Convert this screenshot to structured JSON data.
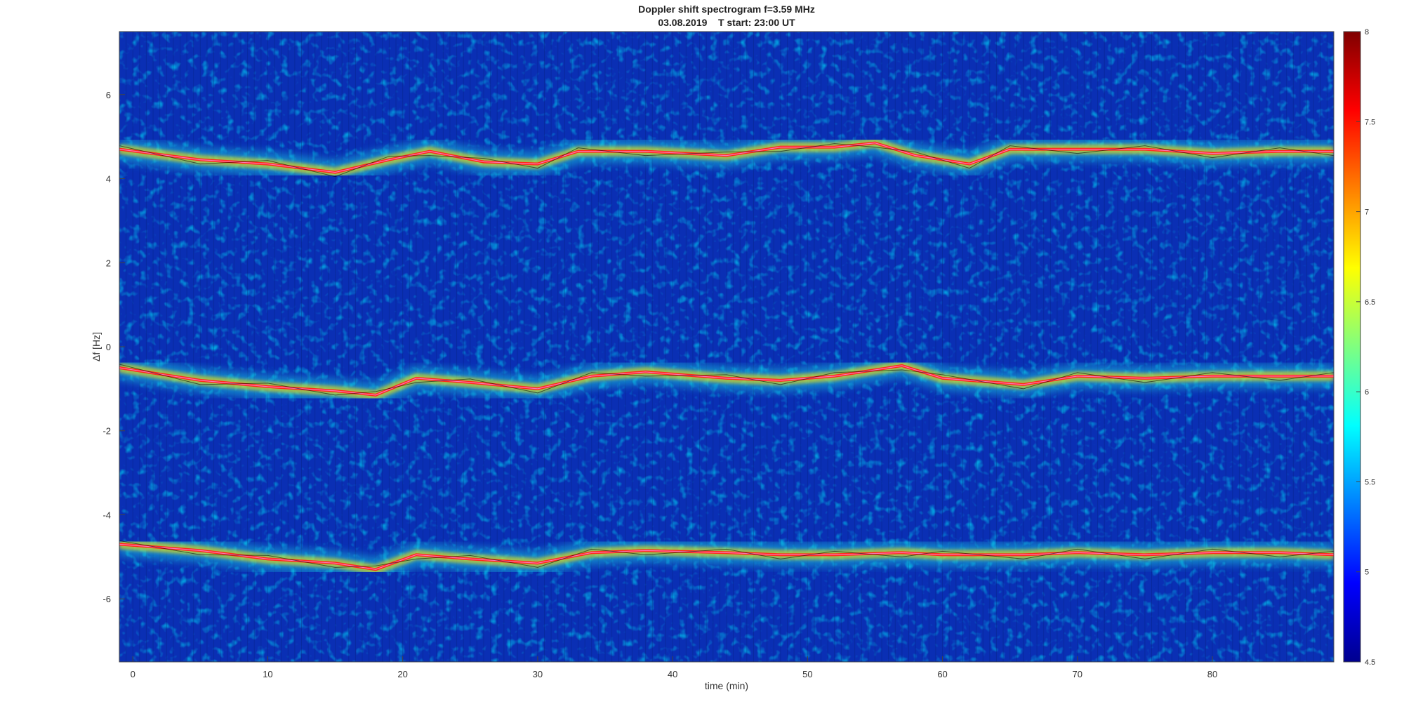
{
  "chart_data": {
    "type": "heatmap",
    "title": "Doppler shift spectrogram f=3.59 MHz",
    "subtitle": "03.08.2019    T start: 23:00 UT",
    "xlabel": "time (min)",
    "ylabel": "Δf [Hz]",
    "xlim": [
      -1,
      89
    ],
    "ylim": [
      -7.5,
      7.5
    ],
    "xticks": [
      "0",
      "10",
      "20",
      "30",
      "40",
      "50",
      "60",
      "70",
      "80"
    ],
    "yticks": [
      "6",
      "4",
      "2",
      "0",
      "-2",
      "-4",
      "-6"
    ],
    "colorbar": {
      "range": [
        4.5,
        8
      ],
      "ticks": [
        "8",
        "7.5",
        "7",
        "6.5",
        "6",
        "5.5",
        "5",
        "4.5"
      ],
      "colormap": "jet"
    },
    "traces": [
      {
        "name": "",
        "x": [
          -1,
          5,
          10,
          15,
          19,
          22,
          26,
          30,
          33,
          38,
          44,
          48,
          52,
          55,
          58,
          62,
          65,
          70,
          75,
          80,
          85,
          89
        ],
        "y": [
          4.7,
          4.45,
          4.35,
          4.15,
          4.45,
          4.65,
          4.4,
          4.35,
          4.65,
          4.65,
          4.55,
          4.75,
          4.75,
          4.85,
          4.55,
          4.35,
          4.7,
          4.7,
          4.7,
          4.6,
          4.65,
          4.65
        ]
      },
      {
        "name": "",
        "x": [
          -1,
          5,
          10,
          15,
          18,
          21,
          25,
          30,
          34,
          38,
          44,
          48,
          52,
          57,
          60,
          66,
          70,
          75,
          80,
          85,
          89
        ],
        "y": [
          -0.5,
          -0.8,
          -0.95,
          -1.05,
          -1.15,
          -0.75,
          -0.85,
          -1.0,
          -0.7,
          -0.6,
          -0.75,
          -0.8,
          -0.7,
          -0.45,
          -0.75,
          -0.9,
          -0.7,
          -0.75,
          -0.7,
          -0.7,
          -0.7
        ]
      },
      {
        "name": "",
        "x": [
          -1,
          5,
          10,
          15,
          18,
          21,
          25,
          30,
          34,
          38,
          44,
          48,
          52,
          57,
          60,
          66,
          70,
          75,
          80,
          85,
          89
        ],
        "y": [
          -4.7,
          -4.85,
          -5.05,
          -5.15,
          -5.3,
          -4.95,
          -5.05,
          -5.15,
          -4.9,
          -4.85,
          -4.9,
          -4.95,
          -4.95,
          -4.9,
          -4.95,
          -4.95,
          -4.9,
          -4.95,
          -4.9,
          -4.9,
          -4.95
        ]
      }
    ],
    "colors": {
      "background": "#0a2fb4",
      "trace_primary": "#ff2a1a",
      "trace_overlay": "#ff7ac8",
      "trace_secondary": "#000000"
    }
  }
}
